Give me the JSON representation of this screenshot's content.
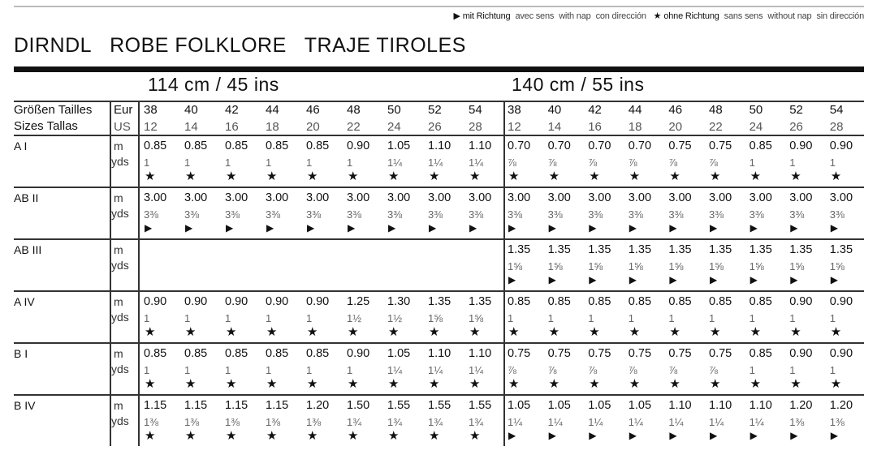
{
  "legend": {
    "with_nap_symbol": "▶",
    "with_nap": [
      "mit Richtung",
      "avec sens",
      "with nap",
      "con dirección"
    ],
    "without_nap_symbol": "★",
    "without_nap": [
      "ohne Richtung",
      "sans sens",
      "without nap",
      "sin dirección"
    ]
  },
  "title": [
    "DIRNDL",
    "ROBE FOLKLORE",
    "TRAJE TIROLES"
  ],
  "fabric_widths": [
    "114 cm / 45 ins",
    "140 cm / 55 ins"
  ],
  "header": {
    "sizes_label_1": "Größen Tailles",
    "sizes_label_2": "Sizes  Tallas",
    "eur": "Eur",
    "us": "US",
    "eur_sizes": [
      "38",
      "40",
      "42",
      "44",
      "46",
      "48",
      "50",
      "52",
      "54"
    ],
    "us_sizes": [
      "12",
      "14",
      "16",
      "18",
      "20",
      "22",
      "24",
      "26",
      "28"
    ]
  },
  "units": {
    "m": "m",
    "yds": "yds"
  },
  "rows": [
    {
      "label": "A I",
      "m": [
        "0.85",
        "0.85",
        "0.85",
        "0.85",
        "0.85",
        "0.90",
        "1.05",
        "1.10",
        "1.10",
        "0.70",
        "0.70",
        "0.70",
        "0.70",
        "0.75",
        "0.75",
        "0.85",
        "0.90",
        "0.90"
      ],
      "yds": [
        "1",
        "1",
        "1",
        "1",
        "1",
        "1",
        "1¼",
        "1¼",
        "1¼",
        "⅞",
        "⅞",
        "⅞",
        "⅞",
        "⅞",
        "⅞",
        "1",
        "1",
        "1"
      ],
      "sym": [
        "★",
        "★",
        "★",
        "★",
        "★",
        "★",
        "★",
        "★",
        "★",
        "★",
        "★",
        "★",
        "★",
        "★",
        "★",
        "★",
        "★",
        "★"
      ]
    },
    {
      "label": "AB II",
      "m": [
        "3.00",
        "3.00",
        "3.00",
        "3.00",
        "3.00",
        "3.00",
        "3.00",
        "3.00",
        "3.00",
        "3.00",
        "3.00",
        "3.00",
        "3.00",
        "3.00",
        "3.00",
        "3.00",
        "3.00",
        "3.00"
      ],
      "yds": [
        "3⅜",
        "3⅜",
        "3⅜",
        "3⅜",
        "3⅜",
        "3⅜",
        "3⅜",
        "3⅜",
        "3⅜",
        "3⅜",
        "3⅜",
        "3⅜",
        "3⅜",
        "3⅜",
        "3⅜",
        "3⅜",
        "3⅜",
        "3⅜"
      ],
      "sym": [
        "▶",
        "▶",
        "▶",
        "▶",
        "▶",
        "▶",
        "▶",
        "▶",
        "▶",
        "▶",
        "▶",
        "▶",
        "▶",
        "▶",
        "▶",
        "▶",
        "▶",
        "▶"
      ]
    },
    {
      "label": "AB III",
      "m": [
        "",
        "",
        "",
        "",
        "",
        "",
        "",
        "",
        "",
        "1.35",
        "1.35",
        "1.35",
        "1.35",
        "1.35",
        "1.35",
        "1.35",
        "1.35",
        "1.35"
      ],
      "yds": [
        "",
        "",
        "",
        "",
        "",
        "",
        "",
        "",
        "",
        "1⅝",
        "1⅝",
        "1⅝",
        "1⅝",
        "1⅝",
        "1⅝",
        "1⅝",
        "1⅝",
        "1⅝"
      ],
      "sym": [
        "",
        "",
        "",
        "",
        "",
        "",
        "",
        "",
        "",
        "▶",
        "▶",
        "▶",
        "▶",
        "▶",
        "▶",
        "▶",
        "▶",
        "▶"
      ]
    },
    {
      "label": "A IV",
      "m": [
        "0.90",
        "0.90",
        "0.90",
        "0.90",
        "0.90",
        "1.25",
        "1.30",
        "1.35",
        "1.35",
        "0.85",
        "0.85",
        "0.85",
        "0.85",
        "0.85",
        "0.85",
        "0.85",
        "0.90",
        "0.90"
      ],
      "yds": [
        "1",
        "1",
        "1",
        "1",
        "1",
        "1½",
        "1½",
        "1⅝",
        "1⅝",
        "1",
        "1",
        "1",
        "1",
        "1",
        "1",
        "1",
        "1",
        "1"
      ],
      "sym": [
        "★",
        "★",
        "★",
        "★",
        "★",
        "★",
        "★",
        "★",
        "★",
        "★",
        "★",
        "★",
        "★",
        "★",
        "★",
        "★",
        "★",
        "★"
      ]
    },
    {
      "label": "B I",
      "m": [
        "0.85",
        "0.85",
        "0.85",
        "0.85",
        "0.85",
        "0.90",
        "1.05",
        "1.10",
        "1.10",
        "0.75",
        "0.75",
        "0.75",
        "0.75",
        "0.75",
        "0.75",
        "0.85",
        "0.90",
        "0.90"
      ],
      "yds": [
        "1",
        "1",
        "1",
        "1",
        "1",
        "1",
        "1¼",
        "1¼",
        "1¼",
        "⅞",
        "⅞",
        "⅞",
        "⅞",
        "⅞",
        "⅞",
        "1",
        "1",
        "1"
      ],
      "sym": [
        "★",
        "★",
        "★",
        "★",
        "★",
        "★",
        "★",
        "★",
        "★",
        "★",
        "★",
        "★",
        "★",
        "★",
        "★",
        "★",
        "★",
        "★"
      ]
    },
    {
      "label": "B IV",
      "m": [
        "1.15",
        "1.15",
        "1.15",
        "1.15",
        "1.20",
        "1.50",
        "1.55",
        "1.55",
        "1.55",
        "1.05",
        "1.05",
        "1.05",
        "1.05",
        "1.10",
        "1.10",
        "1.10",
        "1.20",
        "1.20"
      ],
      "yds": [
        "1⅜",
        "1⅜",
        "1⅜",
        "1⅜",
        "1⅜",
        "1¾",
        "1¾",
        "1¾",
        "1¾",
        "1¼",
        "1¼",
        "1¼",
        "1¼",
        "1¼",
        "1¼",
        "1¼",
        "1⅜",
        "1⅜"
      ],
      "sym": [
        "★",
        "★",
        "★",
        "★",
        "★",
        "★",
        "★",
        "★",
        "★",
        "▶",
        "▶",
        "▶",
        "▶",
        "▶",
        "▶",
        "▶",
        "▶",
        "▶"
      ]
    }
  ]
}
